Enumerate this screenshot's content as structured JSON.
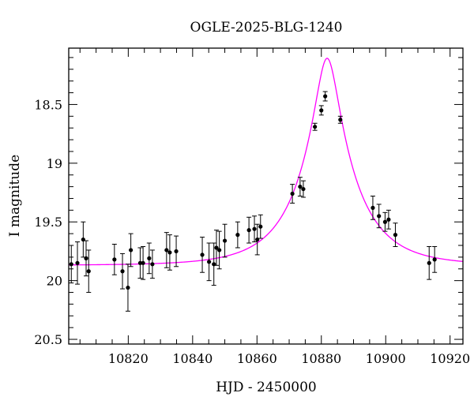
{
  "chart_data": {
    "type": "scatter",
    "title": "OGLE-2025-BLG-1240",
    "xlabel": "HJD - 2450000",
    "ylabel": "I magnitude",
    "xlim": [
      10801.5,
      10924
    ],
    "ylim": [
      20.54,
      18.02
    ],
    "y_inverted": true,
    "xticks": [
      10820,
      10840,
      10860,
      10880,
      10900,
      10920
    ],
    "xtick_labels": [
      "10820",
      "10840",
      "10860",
      "10880",
      "10900",
      "10920"
    ],
    "yticks": [
      18.5,
      19,
      19.5,
      20,
      20.5
    ],
    "ytick_labels": [
      "18.5",
      "19",
      "19.5",
      "20",
      "20.5"
    ],
    "x_minor_step": 5,
    "y_minor_step": 0.1,
    "grid": false,
    "legend": "none",
    "series": [
      {
        "kind": "points_with_errorbars",
        "color": "#000000",
        "x": [
          10802.3,
          10804.2,
          10806.0,
          10806.9,
          10807.7,
          10815.7,
          10818.2,
          10819.9,
          10820.8,
          10823.7,
          10824.6,
          10826.5,
          10827.5,
          10831.9,
          10832.9,
          10834.9,
          10843.0,
          10845.1,
          10846.6,
          10847.4,
          10848.3,
          10850.0,
          10854.0,
          10857.5,
          10859.2,
          10860.1,
          10861.1,
          10871.0,
          10873.4,
          10874.4,
          10878.0,
          10880.0,
          10881.2,
          10885.9,
          10896.0,
          10897.9,
          10899.8,
          10900.9,
          10903.0,
          10913.5,
          10915.2
        ],
        "y": [
          19.86,
          19.85,
          19.65,
          19.81,
          19.92,
          19.82,
          19.92,
          20.06,
          19.74,
          19.85,
          19.85,
          19.81,
          19.86,
          19.74,
          19.76,
          19.75,
          19.78,
          19.84,
          19.86,
          19.72,
          19.74,
          19.66,
          19.61,
          19.57,
          19.56,
          19.65,
          19.54,
          19.26,
          19.2,
          19.22,
          18.69,
          18.55,
          18.43,
          18.63,
          19.38,
          19.45,
          19.5,
          19.48,
          19.61,
          19.85,
          19.82
        ],
        "yerr": [
          0.16,
          0.18,
          0.15,
          0.15,
          0.18,
          0.13,
          0.15,
          0.2,
          0.14,
          0.13,
          0.14,
          0.13,
          0.12,
          0.15,
          0.15,
          0.13,
          0.15,
          0.16,
          0.18,
          0.15,
          0.16,
          0.14,
          0.11,
          0.11,
          0.11,
          0.13,
          0.1,
          0.08,
          0.08,
          0.07,
          0.03,
          0.04,
          0.04,
          0.03,
          0.1,
          0.1,
          0.08,
          0.08,
          0.1,
          0.14,
          0.11
        ]
      },
      {
        "kind": "model_curve",
        "color": "#ff00ff",
        "t0": 10881.8,
        "tE": 17.0,
        "u0": 0.2,
        "baseline_mag": 19.87
      }
    ]
  }
}
